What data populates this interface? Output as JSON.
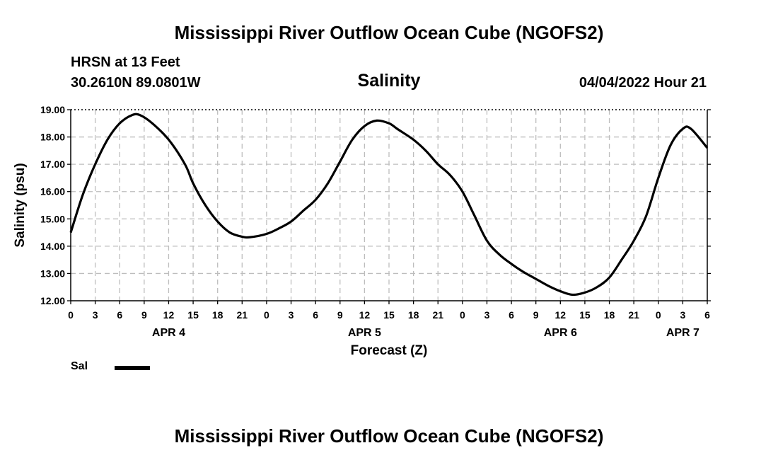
{
  "page": {
    "title": "Mississippi River Outflow Ocean Cube (NGOFS2)",
    "station": "HRSN at 13 Feet",
    "coords": "30.2610N  89.0801W",
    "datetime": "04/04/2022 Hour 21",
    "footer_title": "Mississippi River Outflow Ocean Cube (NGOFS2)"
  },
  "legend": {
    "label": "Sal"
  },
  "colors": {
    "line": "#000000",
    "grid": "#bdbdbd"
  },
  "chart_data": {
    "type": "line",
    "title": "Salinity",
    "xlabel": "Forecast (Z)",
    "ylabel": "Salinity (psu)",
    "ylim": [
      12.0,
      19.0
    ],
    "xlim": [
      0,
      78
    ],
    "x_unit": "hours since APR 4 00Z",
    "grid": true,
    "yticks": [
      "12.00",
      "13.00",
      "14.00",
      "15.00",
      "16.00",
      "17.00",
      "18.00",
      "19.00"
    ],
    "xtick_labels": [
      "0",
      "3",
      "6",
      "9",
      "12",
      "15",
      "18",
      "21",
      "0",
      "3",
      "6",
      "9",
      "12",
      "15",
      "18",
      "21",
      "0",
      "3",
      "6",
      "9",
      "12",
      "15",
      "18",
      "21",
      "0",
      "3",
      "6"
    ],
    "day_labels": [
      {
        "label": "APR 4",
        "hour": 12
      },
      {
        "label": "APR 5",
        "hour": 36
      },
      {
        "label": "APR 6",
        "hour": 60
      },
      {
        "label": "APR 7",
        "hour": 75
      }
    ],
    "series": [
      {
        "name": "Sal",
        "x": [
          0,
          1.5,
          3,
          4.5,
          6,
          7.5,
          8.5,
          10,
          12,
          14,
          15,
          16.5,
          18,
          19.5,
          21,
          22,
          24,
          25.5,
          27,
          28.5,
          30,
          31.5,
          33,
          34.5,
          36,
          37.5,
          39,
          40,
          42,
          43.5,
          45,
          46.5,
          48,
          49.5,
          51,
          52.5,
          54,
          55.5,
          57,
          58.5,
          60,
          61.5,
          63,
          64.5,
          66,
          67.5,
          69,
          70.5,
          72,
          73.5,
          75,
          76,
          78
        ],
        "values": [
          14.5,
          15.9,
          17.0,
          17.9,
          18.5,
          18.8,
          18.8,
          18.5,
          17.9,
          17.0,
          16.3,
          15.5,
          14.9,
          14.5,
          14.35,
          14.33,
          14.45,
          14.65,
          14.9,
          15.3,
          15.7,
          16.3,
          17.1,
          17.9,
          18.4,
          18.6,
          18.5,
          18.3,
          17.9,
          17.5,
          17.0,
          16.6,
          16.0,
          15.1,
          14.2,
          13.7,
          13.35,
          13.05,
          12.8,
          12.55,
          12.35,
          12.22,
          12.3,
          12.5,
          12.85,
          13.5,
          14.2,
          15.1,
          16.5,
          17.7,
          18.3,
          18.3,
          17.6
        ]
      }
    ]
  }
}
